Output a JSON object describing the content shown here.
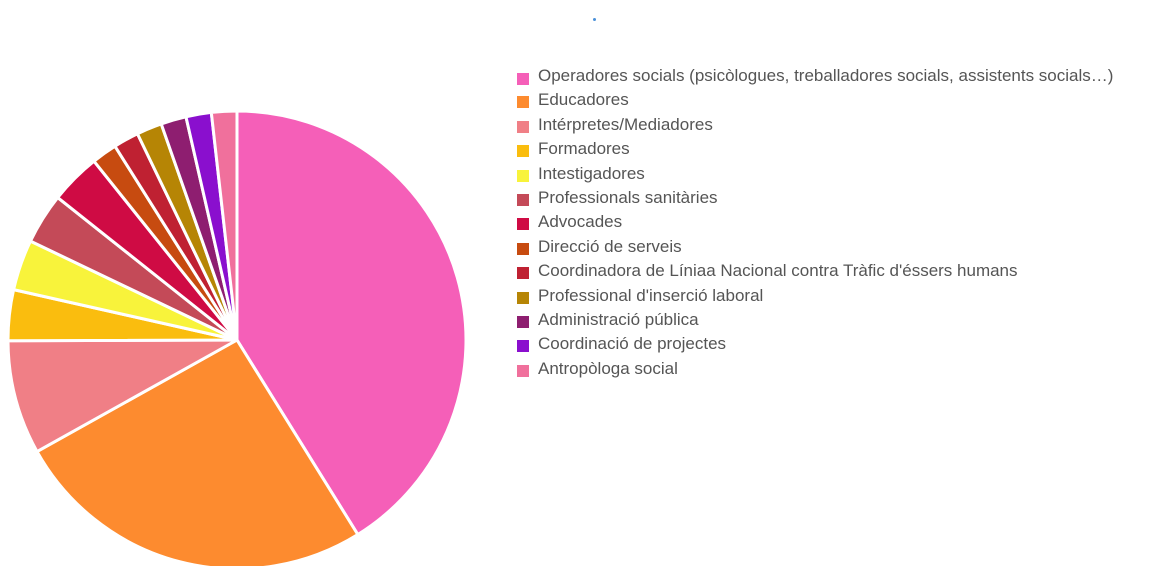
{
  "chart_data": {
    "type": "pie",
    "title": "",
    "legend_position": "right",
    "slices": [
      {
        "label": "Operadores socials (psicòlogues, treballadores socials, assistents socials…)",
        "value": 41.4,
        "color": "#f55fb8"
      },
      {
        "label": "Educadores",
        "value": 25.9,
        "color": "#fd8b2f"
      },
      {
        "label": "Intérpretes/Mediadores",
        "value": 8.1,
        "color": "#f07f86"
      },
      {
        "label": "Formadores",
        "value": 3.6,
        "color": "#fabd0e"
      },
      {
        "label": "Intestigadores",
        "value": 3.6,
        "color": "#f8f33b"
      },
      {
        "label": "Professionals sanitàries",
        "value": 3.6,
        "color": "#c44a58"
      },
      {
        "label": "Advocades",
        "value": 3.6,
        "color": "#cf0b44"
      },
      {
        "label": "Direcció de serveis",
        "value": 1.8,
        "color": "#c74b10"
      },
      {
        "label": "Coordinadora de Líniaa Nacional contra Tràfic d'éssers humans",
        "value": 1.8,
        "color": "#bf2132"
      },
      {
        "label": "Professional d'inserció laboral",
        "value": 1.8,
        "color": "#b68505"
      },
      {
        "label": "Administració pública",
        "value": 1.8,
        "color": "#8e1e70"
      },
      {
        "label": "Coordinació de projectes",
        "value": 1.8,
        "color": "#8a0fce"
      },
      {
        "label": "Antropòloga social",
        "value": 1.8,
        "color": "#f0709c"
      }
    ]
  }
}
